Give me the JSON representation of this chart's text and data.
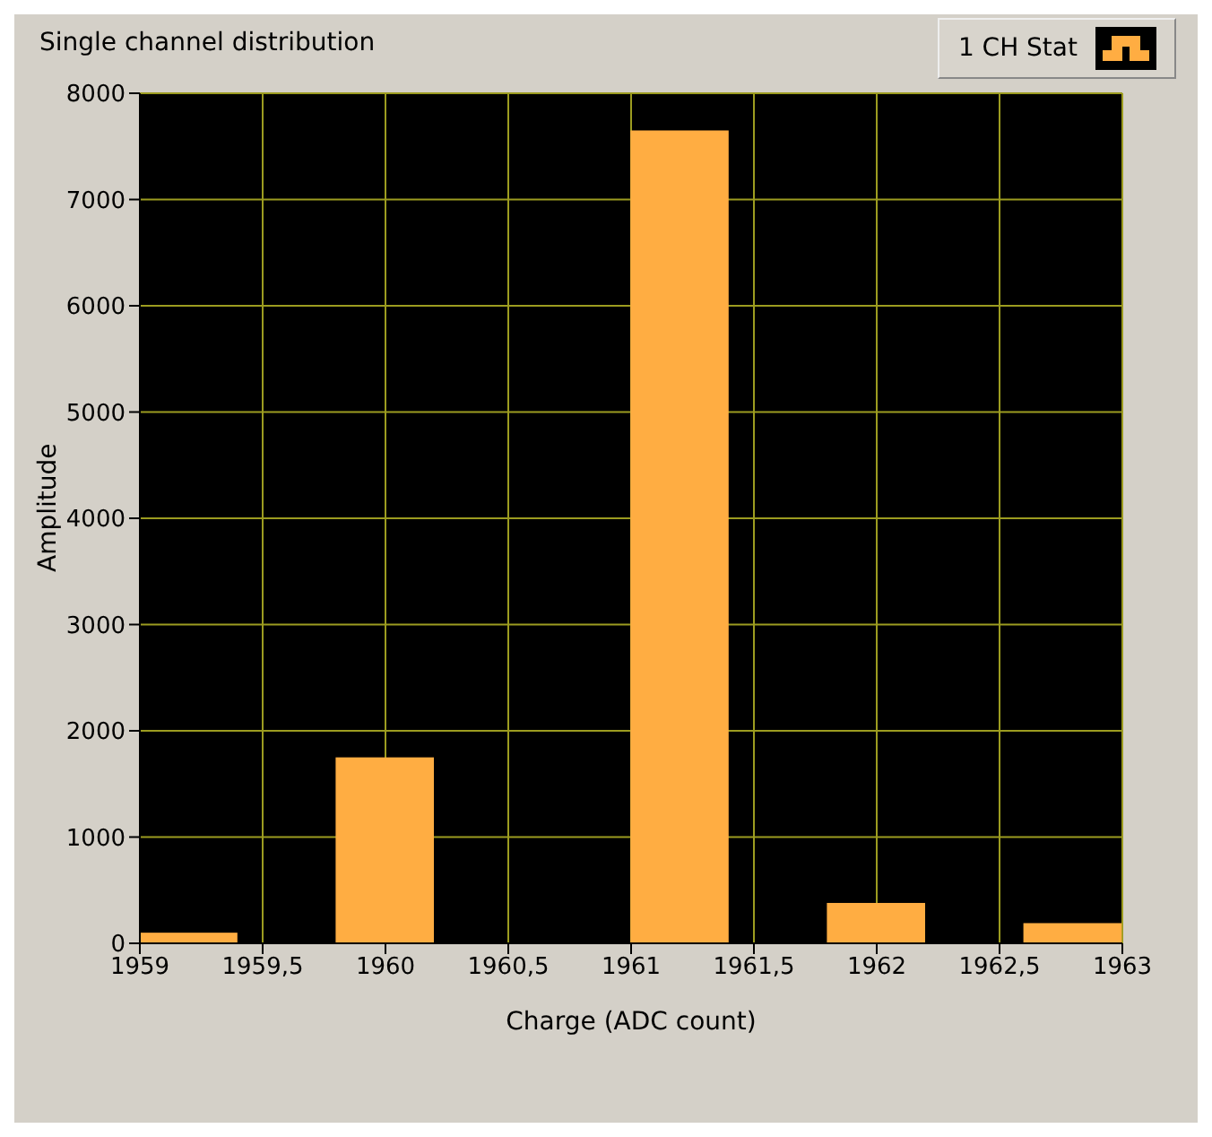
{
  "chart_data": {
    "type": "histogram",
    "title": "Single channel distribution",
    "xlabel": "Charge (ADC count)",
    "ylabel": "Amplitude",
    "bins": [
      1959,
      1959.4,
      1959.8,
      1960.2,
      1960.6,
      1961,
      1961.4,
      1961.8,
      1962.2,
      1962.6,
      1963
    ],
    "series": [
      {
        "name": "1 CH Stat",
        "color": "#ffad42",
        "values": [
          100,
          0,
          1750,
          0,
          0,
          7650,
          0,
          380,
          0,
          190
        ]
      }
    ],
    "xlim": [
      1959,
      1963
    ],
    "xticks": [
      1959,
      {
        "value": 1959.5,
        "label": "1959,5"
      },
      1960,
      {
        "value": 1960.5,
        "label": "1960,5"
      },
      1961,
      {
        "value": 1961.5,
        "label": "1961,5"
      },
      1962,
      {
        "value": 1962.5,
        "label": "1962,5"
      },
      1963
    ],
    "ylim": [
      0,
      8000
    ],
    "yticks": [
      0,
      1000,
      2000,
      3000,
      4000,
      5000,
      6000,
      7000,
      8000
    ],
    "grid": true,
    "legend": "top right"
  }
}
